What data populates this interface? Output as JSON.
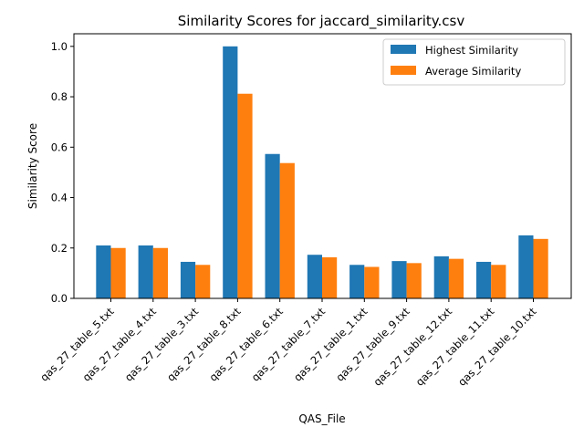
{
  "chart_data": {
    "type": "bar",
    "title": "Similarity Scores for jaccard_similarity.csv",
    "xlabel": "QAS_File",
    "ylabel": "Similarity Score",
    "ylim": [
      0,
      1.05
    ],
    "yticks": [
      0.0,
      0.2,
      0.4,
      0.6,
      0.8,
      1.0
    ],
    "ytick_labels": [
      "0.0",
      "0.2",
      "0.4",
      "0.6",
      "0.8",
      "1.0"
    ],
    "grid": false,
    "legend_position": "top-right",
    "categories": [
      "qas_27_table_5.txt",
      "qas_27_table_4.txt",
      "qas_27_table_3.txt",
      "qas_27_table_8.txt",
      "qas_27_table_6.txt",
      "qas_27_table_7.txt",
      "qas_27_table_1.txt",
      "qas_27_table_9.txt",
      "qas_27_table_12.txt",
      "qas_27_table_11.txt",
      "qas_27_table_10.txt"
    ],
    "series": [
      {
        "name": "Highest Similarity",
        "color": "#1f77b4",
        "values": [
          0.21,
          0.21,
          0.145,
          1.0,
          0.573,
          0.173,
          0.133,
          0.148,
          0.167,
          0.145,
          0.25
        ]
      },
      {
        "name": "Average Similarity",
        "color": "#ff7f0e",
        "values": [
          0.2,
          0.2,
          0.133,
          0.812,
          0.537,
          0.163,
          0.125,
          0.14,
          0.157,
          0.133,
          0.236
        ]
      }
    ]
  }
}
